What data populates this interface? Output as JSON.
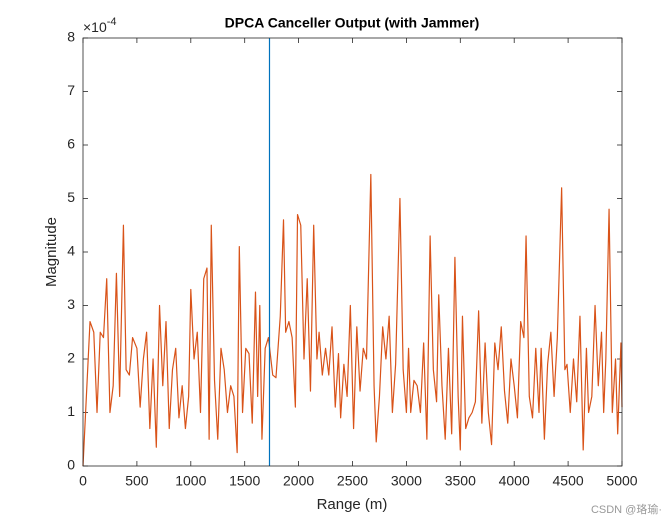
{
  "chart_data": {
    "type": "line",
    "title": "DPCA Canceller Output (with Jammer)",
    "xlabel": "Range (m)",
    "ylabel": "Magnitude",
    "y_exponent": {
      "base": "×10",
      "power": "-4"
    },
    "watermark": "CSDN @珞瑜·",
    "xlim": [
      0,
      5000
    ],
    "xticks": [
      0,
      500,
      1000,
      1500,
      2000,
      2500,
      3000,
      3500,
      4000,
      4500,
      5000
    ],
    "ylim": [
      0,
      8
    ],
    "yticks": [
      0,
      1,
      2,
      3,
      4,
      5,
      6,
      7,
      8
    ],
    "grid": false,
    "box": true,
    "series": [
      {
        "color": "#d95319",
        "x": [
          0,
          65,
          100,
          130,
          160,
          190,
          220,
          250,
          280,
          310,
          340,
          375,
          400,
          430,
          460,
          500,
          530,
          560,
          590,
          620,
          650,
          680,
          710,
          740,
          770,
          800,
          830,
          860,
          890,
          920,
          950,
          980,
          1000,
          1030,
          1060,
          1090,
          1120,
          1150,
          1170,
          1190,
          1220,
          1250,
          1280,
          1310,
          1340,
          1370,
          1400,
          1430,
          1450,
          1480,
          1510,
          1540,
          1570,
          1600,
          1620,
          1640,
          1660,
          1690,
          1720,
          1760,
          1790,
          1830,
          1860,
          1880,
          1910,
          1940,
          1970,
          1990,
          2020,
          2050,
          2080,
          2110,
          2140,
          2170,
          2190,
          2220,
          2250,
          2280,
          2310,
          2340,
          2370,
          2390,
          2420,
          2450,
          2480,
          2510,
          2540,
          2570,
          2600,
          2630,
          2670,
          2700,
          2720,
          2750,
          2780,
          2810,
          2840,
          2870,
          2900,
          2940,
          2970,
          3000,
          3020,
          3040,
          3070,
          3100,
          3130,
          3160,
          3190,
          3220,
          3250,
          3280,
          3300,
          3330,
          3360,
          3390,
          3420,
          3450,
          3480,
          3500,
          3520,
          3550,
          3580,
          3610,
          3640,
          3670,
          3700,
          3730,
          3760,
          3790,
          3820,
          3850,
          3880,
          3910,
          3940,
          3970,
          4000,
          4030,
          4060,
          4090,
          4110,
          4140,
          4170,
          4200,
          4230,
          4250,
          4280,
          4310,
          4340,
          4370,
          4400,
          4440,
          4470,
          4490,
          4520,
          4550,
          4580,
          4610,
          4640,
          4670,
          4690,
          4720,
          4750,
          4780,
          4810,
          4830,
          4850,
          4880,
          4910,
          4940,
          4960,
          4990,
          5000
        ],
        "values": [
          0,
          2.7,
          2.5,
          1.0,
          2.5,
          2.4,
          3.5,
          1.0,
          1.5,
          3.6,
          1.3,
          4.5,
          1.8,
          1.7,
          2.4,
          2.2,
          1.1,
          2.0,
          2.5,
          0.7,
          2.0,
          0.35,
          3.0,
          1.5,
          2.7,
          0.7,
          1.8,
          2.2,
          0.9,
          1.5,
          0.7,
          1.3,
          3.3,
          2.0,
          2.5,
          1.0,
          3.5,
          3.7,
          0.5,
          4.5,
          1.6,
          0.5,
          2.2,
          1.8,
          1.0,
          1.5,
          1.3,
          0.25,
          4.1,
          1.0,
          2.2,
          2.1,
          0.8,
          3.25,
          1.3,
          3.0,
          0.5,
          2.2,
          2.4,
          1.7,
          1.65,
          2.8,
          4.6,
          2.5,
          2.7,
          2.4,
          1.1,
          4.7,
          4.5,
          2.0,
          3.5,
          1.4,
          4.5,
          2.0,
          2.5,
          1.7,
          2.2,
          1.7,
          2.6,
          1.1,
          2.1,
          0.9,
          1.9,
          1.3,
          3.0,
          0.7,
          2.6,
          1.4,
          2.2,
          2.0,
          5.45,
          1.5,
          0.45,
          1.3,
          2.6,
          2.0,
          2.8,
          1.0,
          1.9,
          5.0,
          1.8,
          1.0,
          2.2,
          1.0,
          1.6,
          1.5,
          1.0,
          2.3,
          0.5,
          4.3,
          1.8,
          1.2,
          3.2,
          1.5,
          0.5,
          2.2,
          0.6,
          3.9,
          1.3,
          0.3,
          2.8,
          0.7,
          0.9,
          1.0,
          1.2,
          2.9,
          0.8,
          2.3,
          1.0,
          0.4,
          2.3,
          1.8,
          2.6,
          1.4,
          0.8,
          2.0,
          1.5,
          0.9,
          2.7,
          2.4,
          4.3,
          1.3,
          0.9,
          2.2,
          1.0,
          2.2,
          0.5,
          1.9,
          2.5,
          1.3,
          2.4,
          5.2,
          1.8,
          1.9,
          1.0,
          2.0,
          1.2,
          2.8,
          0.3,
          2.2,
          1.0,
          1.3,
          3.0,
          1.5,
          2.5,
          1.0,
          2.0,
          4.8,
          1.0,
          2.0,
          0.6,
          2.3,
          1.1
        ]
      },
      {
        "color": "#0072bd",
        "x": [
          1730,
          1730
        ],
        "values": [
          0,
          8
        ]
      }
    ]
  }
}
